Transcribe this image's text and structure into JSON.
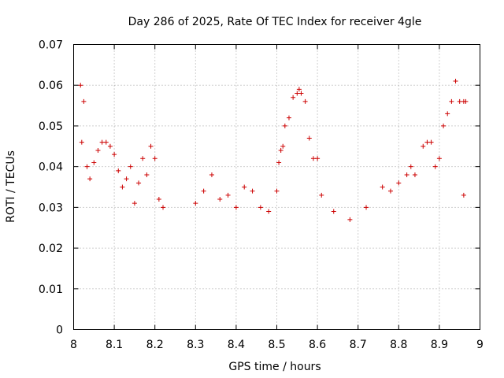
{
  "chart_data": {
    "type": "scatter",
    "title": "Day 286 of 2025, Rate Of TEC Index for receiver 4gle",
    "xlabel": "GPS time / hours",
    "ylabel": "ROTI / TECUs",
    "xlim": [
      8.0,
      9.0
    ],
    "ylim": [
      0.0,
      0.07
    ],
    "x_ticks": [
      "8",
      "8.1",
      "8.2",
      "8.3",
      "8.4",
      "8.5",
      "8.6",
      "8.7",
      "8.8",
      "8.9",
      "9"
    ],
    "y_ticks": [
      "0",
      "0.01",
      "0.02",
      "0.03",
      "0.04",
      "0.05",
      "0.06",
      "0.07"
    ],
    "grid": true,
    "marker": "+",
    "color": "#cc0000",
    "series": [
      {
        "points": [
          [
            8.017,
            0.06
          ],
          [
            8.02,
            0.046
          ],
          [
            8.025,
            0.056
          ],
          [
            8.033,
            0.04
          ],
          [
            8.04,
            0.037
          ],
          [
            8.05,
            0.041
          ],
          [
            8.06,
            0.044
          ],
          [
            8.07,
            0.046
          ],
          [
            8.08,
            0.046
          ],
          [
            8.09,
            0.045
          ],
          [
            8.1,
            0.043
          ],
          [
            8.11,
            0.039
          ],
          [
            8.12,
            0.035
          ],
          [
            8.13,
            0.037
          ],
          [
            8.14,
            0.04
          ],
          [
            8.15,
            0.031
          ],
          [
            8.16,
            0.036
          ],
          [
            8.17,
            0.042
          ],
          [
            8.18,
            0.038
          ],
          [
            8.19,
            0.045
          ],
          [
            8.2,
            0.042
          ],
          [
            8.21,
            0.032
          ],
          [
            8.22,
            0.03
          ],
          [
            8.3,
            0.031
          ],
          [
            8.32,
            0.034
          ],
          [
            8.34,
            0.038
          ],
          [
            8.36,
            0.032
          ],
          [
            8.38,
            0.033
          ],
          [
            8.4,
            0.03
          ],
          [
            8.42,
            0.035
          ],
          [
            8.44,
            0.034
          ],
          [
            8.46,
            0.03
          ],
          [
            8.48,
            0.029
          ],
          [
            8.5,
            0.034
          ],
          [
            8.505,
            0.041
          ],
          [
            8.51,
            0.044
          ],
          [
            8.515,
            0.045
          ],
          [
            8.52,
            0.05
          ],
          [
            8.53,
            0.052
          ],
          [
            8.54,
            0.057
          ],
          [
            8.55,
            0.058
          ],
          [
            8.555,
            0.059
          ],
          [
            8.56,
            0.058
          ],
          [
            8.57,
            0.056
          ],
          [
            8.58,
            0.047
          ],
          [
            8.59,
            0.042
          ],
          [
            8.6,
            0.042
          ],
          [
            8.61,
            0.033
          ],
          [
            8.64,
            0.029
          ],
          [
            8.68,
            0.027
          ],
          [
            8.72,
            0.03
          ],
          [
            8.76,
            0.035
          ],
          [
            8.78,
            0.034
          ],
          [
            8.8,
            0.036
          ],
          [
            8.82,
            0.038
          ],
          [
            8.83,
            0.04
          ],
          [
            8.84,
            0.038
          ],
          [
            8.86,
            0.045
          ],
          [
            8.87,
            0.046
          ],
          [
            8.88,
            0.046
          ],
          [
            8.89,
            0.04
          ],
          [
            8.9,
            0.042
          ],
          [
            8.91,
            0.05
          ],
          [
            8.92,
            0.053
          ],
          [
            8.93,
            0.056
          ],
          [
            8.94,
            0.061
          ],
          [
            8.95,
            0.056
          ],
          [
            8.96,
            0.056
          ],
          [
            8.965,
            0.056
          ],
          [
            8.96,
            0.033
          ]
        ]
      }
    ]
  }
}
